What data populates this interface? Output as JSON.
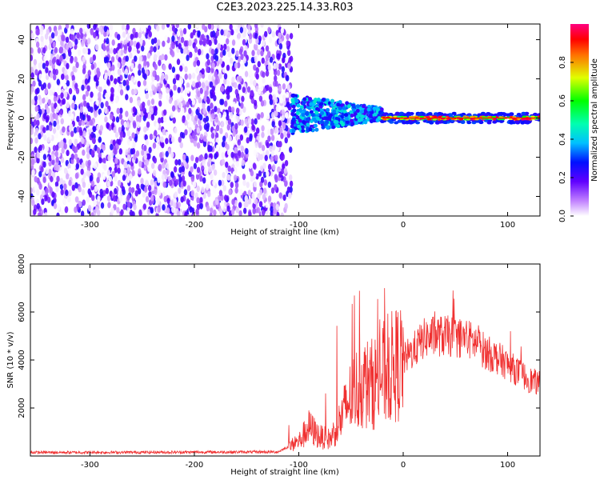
{
  "title": "C2E3.2023.225.14.33.R03",
  "chart_data": [
    {
      "type": "heatmap",
      "xlabel": "Height of straight line (km)",
      "ylabel": "Frequency (Hz)",
      "xlim": [
        -357,
        131
      ],
      "ylim": [
        -50,
        48
      ],
      "x_ticks": [
        "-300",
        "-200",
        "-100",
        "0",
        "100"
      ],
      "y_ticks": [
        "-40",
        "-20",
        "0",
        "20",
        "40"
      ],
      "colorbar_label": "Normalized spectral amplitude",
      "colorbar_ticks": [
        "0.0",
        "0.2",
        "0.4",
        "0.6",
        "0.8"
      ],
      "colorbar_range": [
        0,
        1
      ],
      "regions": [
        {
          "x": [
            -357,
            -107
          ],
          "description_level": "noise",
          "amplitude_range": [
            0.0,
            0.25
          ]
        },
        {
          "x": [
            -107,
            -20
          ],
          "center_freq": 2,
          "amplitude_range": [
            0.2,
            0.45
          ]
        },
        {
          "x": [
            -20,
            131
          ],
          "center_freq": 0,
          "amplitude_range": [
            0.5,
            1.0
          ]
        }
      ]
    },
    {
      "type": "line",
      "xlabel": "Height of straight line (km)",
      "ylabel": "SNR (10 * v/v)",
      "xlim": [
        -357,
        131
      ],
      "ylim": [
        0,
        8000
      ],
      "x_ticks": [
        "-300",
        "-200",
        "-100",
        "0",
        "100"
      ],
      "y_ticks": [
        "2000",
        "4000",
        "6000",
        "8000"
      ],
      "color": "#f03030",
      "series": [
        {
          "x": [
            -357,
            -300,
            -200,
            -120,
            -100,
            -90,
            -80,
            -70,
            -60,
            -50,
            -40,
            -30,
            -20,
            -10,
            0,
            10,
            20,
            30,
            40,
            50,
            60,
            70,
            80,
            90,
            100,
            110,
            120,
            131
          ],
          "values": [
            150,
            150,
            160,
            170,
            600,
            1200,
            800,
            700,
            1500,
            2500,
            3000,
            3000,
            3400,
            3700,
            4000,
            4400,
            4900,
            5000,
            5000,
            4950,
            4900,
            4700,
            4300,
            4100,
            3800,
            3500,
            3200,
            3000
          ]
        }
      ]
    }
  ]
}
